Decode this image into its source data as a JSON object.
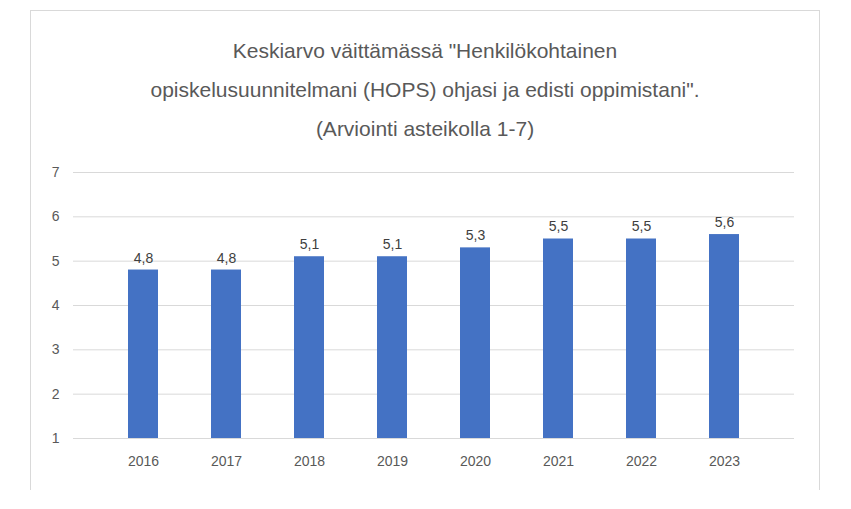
{
  "chart_data": {
    "type": "bar",
    "title": "Keskiarvo väittämässä \"Henkilökohtainen opiskelusuunnitelmani (HOPS) ohjasi ja edisti oppimistani\". (Arviointi asteikolla 1-7)",
    "categories": [
      "2016",
      "2017",
      "2018",
      "2019",
      "2020",
      "2021",
      "2022",
      "2023"
    ],
    "values": [
      4.8,
      4.8,
      5.1,
      5.1,
      5.3,
      5.5,
      5.5,
      5.6
    ],
    "value_labels": [
      "4,8",
      "4,8",
      "5,1",
      "5,1",
      "5,3",
      "5,5",
      "5,5",
      "5,6"
    ],
    "color": "#4472c4",
    "ylim": [
      1,
      7
    ],
    "yticks": [
      1,
      2,
      3,
      4,
      5,
      6,
      7
    ],
    "grid": true,
    "data_labels": true
  }
}
